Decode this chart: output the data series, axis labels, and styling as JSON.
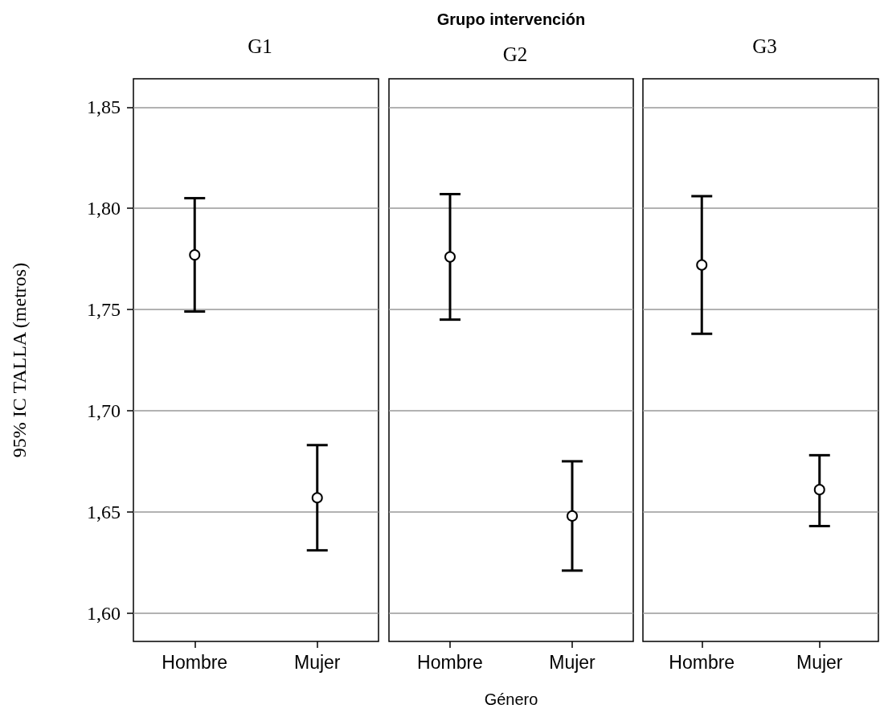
{
  "chart_data": [
    {
      "type": "scatter",
      "title": "G1",
      "ylabel": "95% IC TALLA (metros)",
      "categories": [
        "Hombre",
        "Mujer"
      ],
      "values": [
        1.777,
        1.657
      ],
      "errors": [
        [
          1.749,
          1.805
        ],
        [
          1.631,
          1.683
        ]
      ],
      "color": "#000000",
      "marker": "circle",
      "grid": "y",
      "ylim": [
        1.586,
        1.864
      ],
      "yticks": [
        {
          "value": 1.6,
          "label": "1,60"
        },
        {
          "value": 1.65,
          "label": "1,65"
        },
        {
          "value": 1.7,
          "label": "1,70"
        },
        {
          "value": 1.75,
          "label": "1,75"
        },
        {
          "value": 1.8,
          "label": "1,80"
        },
        {
          "value": 1.85,
          "label": "1,85"
        }
      ]
    },
    {
      "type": "scatter",
      "title": "G2",
      "annotations": [
        "Grupo intervención"
      ],
      "xlabel": "Género",
      "categories": [
        "Hombre",
        "Mujer"
      ],
      "values": [
        1.776,
        1.648
      ],
      "errors": [
        [
          1.745,
          1.807
        ],
        [
          1.621,
          1.675
        ]
      ],
      "color": "#000000",
      "marker": "circle",
      "grid": "y",
      "tick_labels": "x",
      "ylim": [
        1.586,
        1.864
      ],
      "yticks": [
        {
          "value": 1.6,
          "label": null
        },
        {
          "value": 1.65,
          "label": null
        },
        {
          "value": 1.7,
          "label": null
        },
        {
          "value": 1.75,
          "label": null
        },
        {
          "value": 1.8,
          "label": null
        },
        {
          "value": 1.85,
          "label": null
        }
      ]
    },
    {
      "type": "scatter",
      "title": "G3",
      "categories": [
        "Hombre",
        "Mujer"
      ],
      "values": [
        1.772,
        1.661
      ],
      "errors": [
        [
          1.738,
          1.806
        ],
        [
          1.643,
          1.678
        ]
      ],
      "color": "#000000",
      "marker": "circle",
      "grid": "y",
      "tick_labels": "x",
      "ylim": [
        1.586,
        1.864
      ],
      "yticks": [
        {
          "value": 1.6,
          "label": null
        },
        {
          "value": 1.65,
          "label": null
        },
        {
          "value": 1.7,
          "label": null
        },
        {
          "value": 1.75,
          "label": null
        },
        {
          "value": 1.8,
          "label": null
        },
        {
          "value": 1.85,
          "label": null
        }
      ]
    }
  ]
}
